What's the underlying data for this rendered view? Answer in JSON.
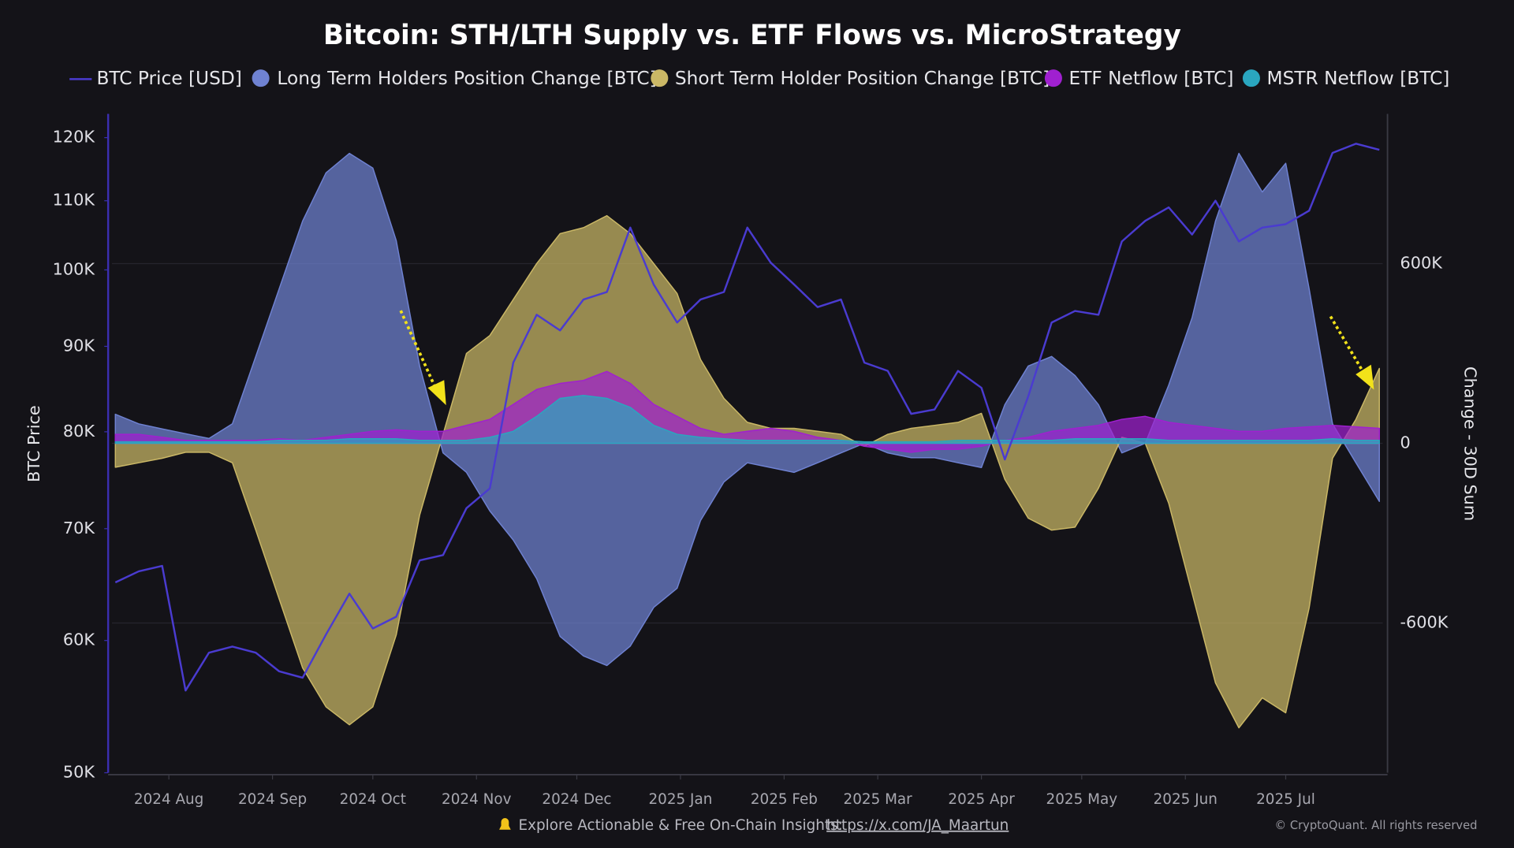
{
  "chart_data": {
    "type": "line",
    "title": "Bitcoin: STH/LTH Supply vs. ETF Flows vs. MicroStrategy",
    "ylabel": "BTC Price",
    "y2label": "Change - 30D Sum",
    "footer": "Explore Actionable & Free On-Chain Insights: ",
    "footer_link": "https://x.com/JA_Maartun",
    "copyright": "© CryptoQuant. All rights reserved",
    "ylog": true,
    "grid": true,
    "xlim": [
      "2024-07-15",
      "2025-07-30"
    ],
    "xticks": [
      {
        "value": "2024-08-01",
        "label": "2024 Aug"
      },
      {
        "value": "2024-09-01",
        "label": "2024 Sep"
      },
      {
        "value": "2024-10-01",
        "label": "2024 Oct"
      },
      {
        "value": "2024-11-01",
        "label": "2024 Nov"
      },
      {
        "value": "2024-12-01",
        "label": "2024 Dec"
      },
      {
        "value": "2025-01-01",
        "label": "2025 Jan"
      },
      {
        "value": "2025-02-01",
        "label": "2025 Feb"
      },
      {
        "value": "2025-03-01",
        "label": "2025 Mar"
      },
      {
        "value": "2025-04-01",
        "label": "2025 Apr"
      },
      {
        "value": "2025-05-01",
        "label": "2025 May"
      },
      {
        "value": "2025-06-01",
        "label": "2025 Jun"
      },
      {
        "value": "2025-07-01",
        "label": "2025 Jul"
      }
    ],
    "ylim": [
      50000,
      124000
    ],
    "yticks": [
      {
        "value": 50000,
        "label": "50K"
      },
      {
        "value": 60000,
        "label": "60K"
      },
      {
        "value": 70000,
        "label": "70K"
      },
      {
        "value": 80000,
        "label": "80K"
      },
      {
        "value": 90000,
        "label": "90K"
      },
      {
        "value": 100000,
        "label": "100K"
      },
      {
        "value": 110000,
        "label": "110K"
      },
      {
        "value": 120000,
        "label": "120K"
      }
    ],
    "y2lim": [
      -1100000,
      1100000
    ],
    "y2ticks": [
      {
        "value": -600000,
        "label": "-600K"
      },
      0,
      {
        "value": 600000,
        "label": "600K"
      }
    ],
    "x": [
      "2024-07-16",
      "2024-07-23",
      "2024-07-30",
      "2024-08-06",
      "2024-08-13",
      "2024-08-20",
      "2024-08-27",
      "2024-09-03",
      "2024-09-10",
      "2024-09-17",
      "2024-09-24",
      "2024-10-01",
      "2024-10-08",
      "2024-10-15",
      "2024-10-22",
      "2024-10-29",
      "2024-11-05",
      "2024-11-12",
      "2024-11-19",
      "2024-11-26",
      "2024-12-03",
      "2024-12-10",
      "2024-12-17",
      "2024-12-24",
      "2024-12-31",
      "2025-01-07",
      "2025-01-14",
      "2025-01-21",
      "2025-01-28",
      "2025-02-04",
      "2025-02-11",
      "2025-02-18",
      "2025-02-25",
      "2025-03-04",
      "2025-03-11",
      "2025-03-18",
      "2025-03-25",
      "2025-04-01",
      "2025-04-08",
      "2025-04-15",
      "2025-04-22",
      "2025-04-29",
      "2025-05-06",
      "2025-05-13",
      "2025-05-20",
      "2025-05-27",
      "2025-06-03",
      "2025-06-10",
      "2025-06-17",
      "2025-06-24",
      "2025-07-01",
      "2025-07-08",
      "2025-07-15",
      "2025-07-22",
      "2025-07-29"
    ],
    "series": [
      {
        "name": "Long Term Holders Position Change [BTC]",
        "kind": "area",
        "axis": "y2",
        "color": "#6f82d2",
        "values": [
          97000,
          65000,
          48000,
          32000,
          16000,
          65000,
          290000,
          516000,
          742000,
          903000,
          968000,
          919000,
          677000,
          258000,
          -32000,
          -97000,
          -226000,
          -323000,
          -452000,
          -645000,
          -710000,
          -742000,
          -677000,
          -548000,
          -484000,
          -258000,
          -129000,
          -65000,
          -81000,
          -97000,
          -65000,
          -32000,
          0,
          -32000,
          -48000,
          -48000,
          -65000,
          -81000,
          129000,
          258000,
          290000,
          226000,
          129000,
          -32000,
          0,
          194000,
          419000,
          742000,
          968000,
          839000,
          935000,
          516000,
          65000,
          -65000,
          -194000
        ]
      },
      {
        "name": "Short Term Holder Position Change [BTC]",
        "kind": "area",
        "axis": "y2",
        "color": "#cbb866",
        "values": [
          -80000,
          -65000,
          -50000,
          -30000,
          -30000,
          -65000,
          -290000,
          -520000,
          -750000,
          -880000,
          -940000,
          -880000,
          -640000,
          -240000,
          30000,
          300000,
          360000,
          480000,
          600000,
          700000,
          720000,
          760000,
          700000,
          600000,
          500000,
          280000,
          150000,
          70000,
          50000,
          50000,
          40000,
          30000,
          -10000,
          30000,
          50000,
          60000,
          70000,
          100000,
          -120000,
          -250000,
          -290000,
          -280000,
          -150000,
          20000,
          0,
          -200000,
          -500000,
          -800000,
          -950000,
          -850000,
          -900000,
          -550000,
          -50000,
          80000,
          250000
        ]
      },
      {
        "name": "ETF Netflow [BTC]",
        "kind": "area",
        "axis": "y2",
        "color": "#a020d0",
        "values": [
          30000,
          30000,
          20000,
          10000,
          10000,
          10000,
          10000,
          15000,
          10000,
          20000,
          30000,
          40000,
          45000,
          40000,
          40000,
          60000,
          80000,
          130000,
          180000,
          200000,
          210000,
          240000,
          200000,
          130000,
          90000,
          50000,
          30000,
          40000,
          50000,
          40000,
          20000,
          10000,
          -10000,
          -20000,
          -30000,
          -20000,
          -20000,
          -10000,
          10000,
          20000,
          40000,
          50000,
          60000,
          80000,
          90000,
          70000,
          60000,
          50000,
          40000,
          40000,
          50000,
          55000,
          60000,
          55000,
          50000
        ]
      },
      {
        "name": "MSTR Netflow [BTC]",
        "kind": "area",
        "axis": "y2",
        "color": "#2aa6bf",
        "values": [
          5000,
          5000,
          5000,
          5000,
          5000,
          5000,
          5000,
          10000,
          10000,
          10000,
          15000,
          15000,
          15000,
          10000,
          10000,
          10000,
          20000,
          40000,
          90000,
          150000,
          160000,
          150000,
          120000,
          60000,
          30000,
          20000,
          15000,
          10000,
          10000,
          10000,
          10000,
          10000,
          5000,
          5000,
          5000,
          5000,
          10000,
          10000,
          10000,
          10000,
          10000,
          15000,
          15000,
          15000,
          15000,
          10000,
          10000,
          10000,
          10000,
          10000,
          10000,
          10000,
          15000,
          10000,
          10000
        ]
      },
      {
        "name": "BTC Price [USD]",
        "kind": "line",
        "axis": "y",
        "color": "#4a3bd0",
        "values": [
          65000,
          66000,
          66500,
          56000,
          59000,
          59500,
          59000,
          57500,
          57000,
          60500,
          64000,
          61000,
          62000,
          67000,
          67500,
          72000,
          74000,
          88000,
          94000,
          92000,
          96000,
          97000,
          106000,
          98000,
          93000,
          96000,
          97000,
          106000,
          101000,
          98000,
          95000,
          96000,
          88000,
          87000,
          82000,
          82500,
          87000,
          85000,
          77000,
          84000,
          93000,
          94500,
          94000,
          104000,
          107000,
          109000,
          105000,
          110000,
          104000,
          106000,
          106500,
          108500,
          117500,
          119000,
          118000
        ]
      }
    ]
  }
}
